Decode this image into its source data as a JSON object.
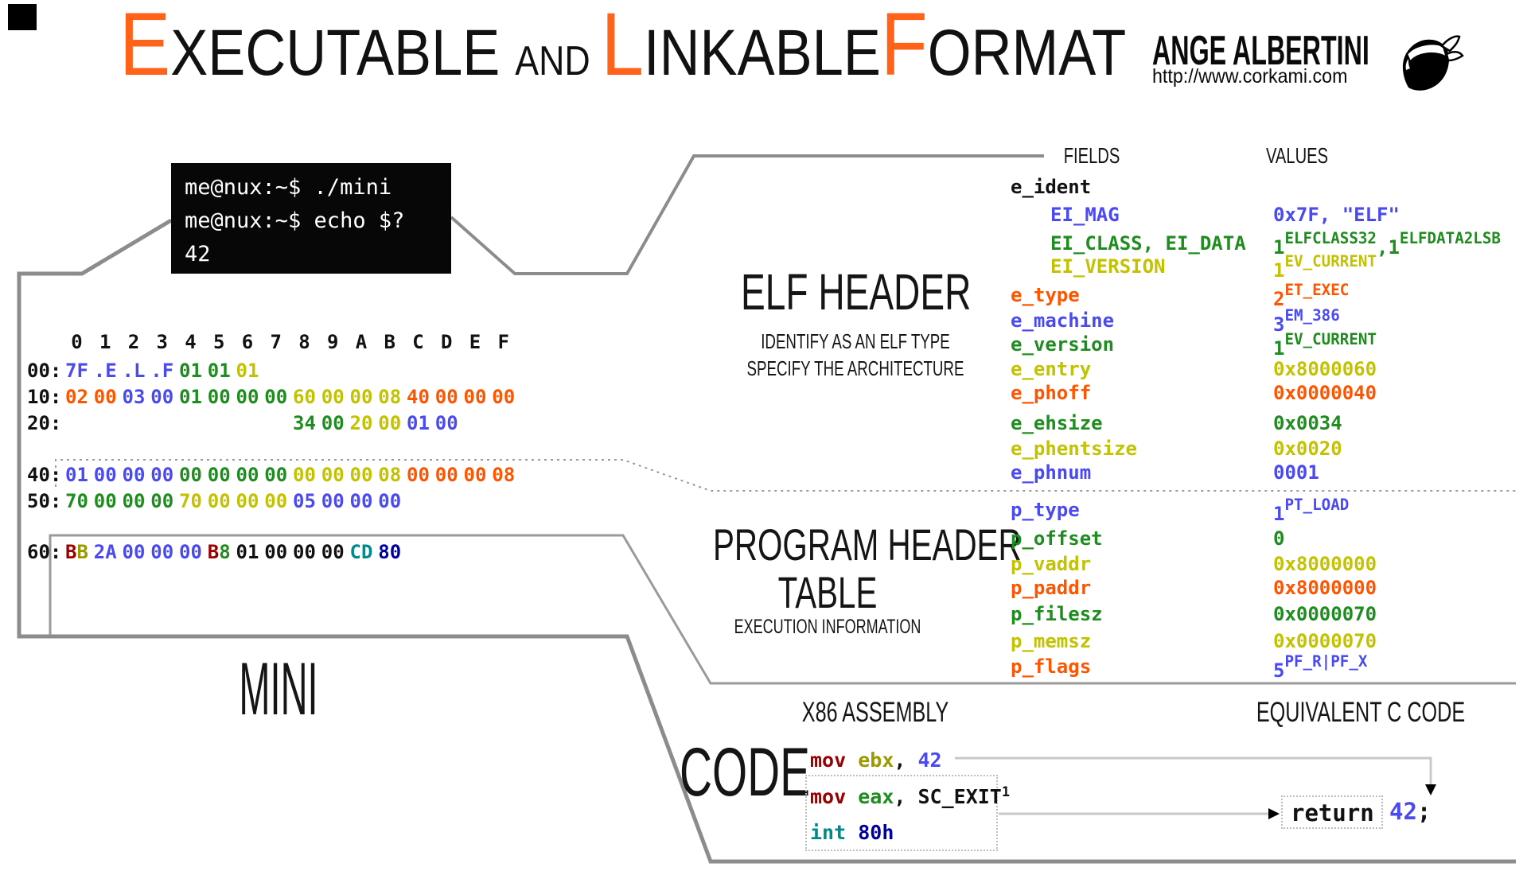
{
  "palette": {
    "blue": "#4A4AEE",
    "green": "#1E8C1E",
    "yellow": "#C2C200",
    "orange": "#FF5500",
    "maroon": "#990000",
    "olive": "#999900",
    "teal": "#008B8B",
    "navy": "#0000A0",
    "accent_orange": "#FF6319",
    "line_gray": "#8C8C8C"
  },
  "title": {
    "segments": [
      {
        "t": "E",
        "k": "big"
      },
      {
        "t": "XECUTABLE",
        "k": "word"
      },
      {
        "t": "AND",
        "k": "and"
      },
      {
        "t": "L",
        "k": "big"
      },
      {
        "t": "INKABLE",
        "k": "word"
      },
      {
        "t": "F",
        "k": "big"
      },
      {
        "t": "ORMAT",
        "k": "word"
      }
    ]
  },
  "author": {
    "name": "ANGE ALBERTINI",
    "url": "http://www.corkami.com",
    "logo": "moor-head-logo"
  },
  "terminal": {
    "lines": [
      "me@nux:~$ ./mini",
      "me@nux:~$ echo $?",
      "42"
    ]
  },
  "hexdump": {
    "col_headers": [
      "0",
      "1",
      "2",
      "3",
      "4",
      "5",
      "6",
      "7",
      "8",
      "9",
      "A",
      "B",
      "C",
      "D",
      "E",
      "F"
    ],
    "rows": [
      {
        "addr": "00:",
        "start": 0,
        "bytes": [
          {
            "t": "7F",
            "c": "blue"
          },
          {
            "t": ".E",
            "c": "blue"
          },
          {
            "t": ".L",
            "c": "blue"
          },
          {
            "t": ".F",
            "c": "blue"
          },
          {
            "t": "01",
            "c": "green"
          },
          {
            "t": "01",
            "c": "green"
          },
          {
            "t": "01",
            "c": "yellow"
          }
        ]
      },
      {
        "addr": "10:",
        "start": 0,
        "bytes": [
          {
            "t": "02",
            "c": "orange"
          },
          {
            "t": "00",
            "c": "orange"
          },
          {
            "t": "03",
            "c": "blue"
          },
          {
            "t": "00",
            "c": "blue"
          },
          {
            "t": "01",
            "c": "green"
          },
          {
            "t": "00",
            "c": "green"
          },
          {
            "t": "00",
            "c": "green"
          },
          {
            "t": "00",
            "c": "green"
          },
          {
            "t": "60",
            "c": "yellow"
          },
          {
            "t": "00",
            "c": "yellow"
          },
          {
            "t": "00",
            "c": "yellow"
          },
          {
            "t": "08",
            "c": "yellow"
          },
          {
            "t": "40",
            "c": "orange"
          },
          {
            "t": "00",
            "c": "orange"
          },
          {
            "t": "00",
            "c": "orange"
          },
          {
            "t": "00",
            "c": "orange"
          }
        ]
      },
      {
        "addr": "20:",
        "start": 8,
        "bytes": [
          {
            "t": "34",
            "c": "green"
          },
          {
            "t": "00",
            "c": "green"
          },
          {
            "t": "20",
            "c": "yellow"
          },
          {
            "t": "00",
            "c": "yellow"
          },
          {
            "t": "01",
            "c": "blue"
          },
          {
            "t": "00",
            "c": "blue"
          }
        ]
      },
      {
        "addr": "40:",
        "start": 0,
        "bytes": [
          {
            "t": "01",
            "c": "blue"
          },
          {
            "t": "00",
            "c": "blue"
          },
          {
            "t": "00",
            "c": "blue"
          },
          {
            "t": "00",
            "c": "blue"
          },
          {
            "t": "00",
            "c": "green"
          },
          {
            "t": "00",
            "c": "green"
          },
          {
            "t": "00",
            "c": "green"
          },
          {
            "t": "00",
            "c": "green"
          },
          {
            "t": "00",
            "c": "yellow"
          },
          {
            "t": "00",
            "c": "yellow"
          },
          {
            "t": "00",
            "c": "yellow"
          },
          {
            "t": "08",
            "c": "yellow"
          },
          {
            "t": "00",
            "c": "orange"
          },
          {
            "t": "00",
            "c": "orange"
          },
          {
            "t": "00",
            "c": "orange"
          },
          {
            "t": "08",
            "c": "orange"
          }
        ]
      },
      {
        "addr": "50:",
        "start": 0,
        "bytes": [
          {
            "t": "70",
            "c": "green"
          },
          {
            "t": "00",
            "c": "green"
          },
          {
            "t": "00",
            "c": "green"
          },
          {
            "t": "00",
            "c": "green"
          },
          {
            "t": "70",
            "c": "yellow"
          },
          {
            "t": "00",
            "c": "yellow"
          },
          {
            "t": "00",
            "c": "yellow"
          },
          {
            "t": "00",
            "c": "yellow"
          },
          {
            "t": "05",
            "c": "blue"
          },
          {
            "t": "00",
            "c": "blue"
          },
          {
            "t": "00",
            "c": "blue"
          },
          {
            "t": "00",
            "c": "blue"
          }
        ]
      },
      {
        "addr": "60:",
        "start": 0,
        "bytes": [
          {
            "parts": [
              {
                "t": "B",
                "c": "maroon"
              },
              {
                "t": "B",
                "c": "olive"
              }
            ]
          },
          {
            "t": "2A",
            "c": "blue"
          },
          {
            "t": "00",
            "c": "blue"
          },
          {
            "t": "00",
            "c": "blue"
          },
          {
            "t": "00",
            "c": "blue"
          },
          {
            "parts": [
              {
                "t": "B",
                "c": "maroon"
              },
              {
                "t": "8",
                "c": "green"
              }
            ]
          },
          {
            "t": "01",
            "c": "black"
          },
          {
            "t": "00",
            "c": "black"
          },
          {
            "t": "00",
            "c": "black"
          },
          {
            "t": "00",
            "c": "black"
          },
          {
            "t": "CD",
            "c": "teal"
          },
          {
            "t": "80",
            "c": "navy"
          }
        ]
      }
    ]
  },
  "sections": {
    "elf_header": {
      "title": "ELF HEADER",
      "sub1": "IDENTIFY AS AN ELF TYPE",
      "sub2": "SPECIFY THE ARCHITECTURE"
    },
    "program_header": {
      "line1": "PROGRAM HEADER",
      "line2": "TABLE",
      "sub": "EXECUTION INFORMATION"
    },
    "code_title": "CODE",
    "mini_label": "MINI"
  },
  "table": {
    "fields_label": "FIELDS",
    "values_label": "VALUES",
    "rows": [
      {
        "field": "e_ident",
        "color": "black",
        "indent": false,
        "value": null
      },
      {
        "field": "EI_MAG",
        "color": "blue",
        "indent": true,
        "value": [
          {
            "t": "0x7F, \"ELF\""
          }
        ]
      },
      {
        "field": "EI_CLASS, EI_DATA",
        "color": "green",
        "indent": true,
        "value": [
          {
            "t": "1",
            "s": "sub"
          },
          {
            "t": "ELFCLASS32",
            "s": "sup"
          },
          {
            "t": ",",
            "s": "sub"
          },
          {
            "t": "1",
            "s": "sub"
          },
          {
            "t": "ELFDATA2LSB",
            "s": "sup"
          }
        ]
      },
      {
        "field": "EI_VERSION",
        "color": "yellow",
        "indent": true,
        "value": [
          {
            "t": "1",
            "s": "sub"
          },
          {
            "t": "EV_CURRENT",
            "s": "sup"
          }
        ]
      },
      {
        "field": "e_type",
        "color": "orange",
        "indent": false,
        "value": [
          {
            "t": "2",
            "s": "sub"
          },
          {
            "t": "ET_EXEC",
            "s": "sup"
          }
        ]
      },
      {
        "field": "e_machine",
        "color": "blue",
        "indent": false,
        "value": [
          {
            "t": "3",
            "s": "sub"
          },
          {
            "t": "EM_386",
            "s": "sup"
          }
        ]
      },
      {
        "field": "e_version",
        "color": "green",
        "indent": false,
        "value": [
          {
            "t": "1",
            "s": "sub"
          },
          {
            "t": "EV_CURRENT",
            "s": "sup"
          }
        ]
      },
      {
        "field": "e_entry",
        "color": "yellow",
        "indent": false,
        "value": [
          {
            "t": "0x8000060"
          }
        ]
      },
      {
        "field": "e_phoff",
        "color": "orange",
        "indent": false,
        "value": [
          {
            "t": "0x0000040"
          }
        ]
      },
      {
        "field": "e_ehsize",
        "color": "green",
        "indent": false,
        "value": [
          {
            "t": "0x0034"
          }
        ]
      },
      {
        "field": "e_phentsize",
        "color": "yellow",
        "indent": false,
        "value": [
          {
            "t": "0x0020"
          }
        ]
      },
      {
        "field": "e_phnum",
        "color": "blue",
        "indent": false,
        "value": [
          {
            "t": "0001"
          }
        ]
      },
      {
        "field": "p_type",
        "color": "blue",
        "indent": false,
        "value": [
          {
            "t": "1",
            "s": "sub"
          },
          {
            "t": "PT_LOAD",
            "s": "sup"
          }
        ]
      },
      {
        "field": "p_offset",
        "color": "green",
        "indent": false,
        "value": [
          {
            "t": "0"
          }
        ]
      },
      {
        "field": "p_vaddr",
        "color": "yellow",
        "indent": false,
        "value": [
          {
            "t": "0x8000000"
          }
        ]
      },
      {
        "field": "p_paddr",
        "color": "orange",
        "indent": false,
        "value": [
          {
            "t": "0x8000000"
          }
        ]
      },
      {
        "field": "p_filesz",
        "color": "green",
        "indent": false,
        "value": [
          {
            "t": "0x0000070"
          }
        ]
      },
      {
        "field": "p_memsz",
        "color": "yellow",
        "indent": false,
        "value": [
          {
            "t": "0x0000070"
          }
        ]
      },
      {
        "field": "p_flags",
        "color": "orange",
        "indent": false,
        "vcolor": "blue",
        "value": [
          {
            "t": "5",
            "s": "sub"
          },
          {
            "t": "PF_R|PF_X",
            "s": "sup"
          }
        ]
      }
    ]
  },
  "code_panel": {
    "asm_label": "X86 ASSEMBLY",
    "c_label": "EQUIVALENT C CODE",
    "asm_lines": [
      [
        {
          "t": "mov ",
          "c": "maroon"
        },
        {
          "t": "ebx",
          "c": "olive"
        },
        {
          "t": ", ",
          "c": "black"
        },
        {
          "t": "42",
          "c": "blue"
        }
      ],
      [
        {
          "t": "mov ",
          "c": "maroon"
        },
        {
          "t": "eax",
          "c": "green"
        },
        {
          "t": ", ",
          "c": "black"
        },
        {
          "t": "SC_EXIT",
          "c": "black"
        },
        {
          "t": "1",
          "c": "black",
          "s": "sup"
        }
      ],
      [
        {
          "t": "int ",
          "c": "teal"
        },
        {
          "t": "80h",
          "c": "navy"
        }
      ]
    ],
    "c_return_label": "return",
    "c_after_tokens": [
      {
        "t": "42",
        "c": "blue"
      },
      {
        "t": ";",
        "c": "black"
      }
    ]
  }
}
